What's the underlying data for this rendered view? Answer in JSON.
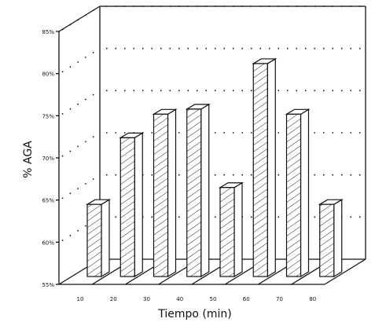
{
  "chart_data": {
    "type": "bar",
    "categories": [
      "10",
      "20",
      "30",
      "40",
      "50",
      "60",
      "70",
      "80"
    ],
    "values": [
      64.3,
      72.2,
      75.0,
      75.6,
      66.3,
      81.0,
      75.0,
      64.3
    ],
    "xlabel": "Tiempo (min)",
    "ylabel": "% AGA",
    "ylim": [
      55,
      85
    ],
    "yticks": [
      "55%",
      "60%",
      "65%",
      "70%",
      "75%",
      "80%",
      "85%"
    ],
    "style": "3d-hatched",
    "grid": "dotted horizontal on back wall",
    "legend": "none"
  }
}
